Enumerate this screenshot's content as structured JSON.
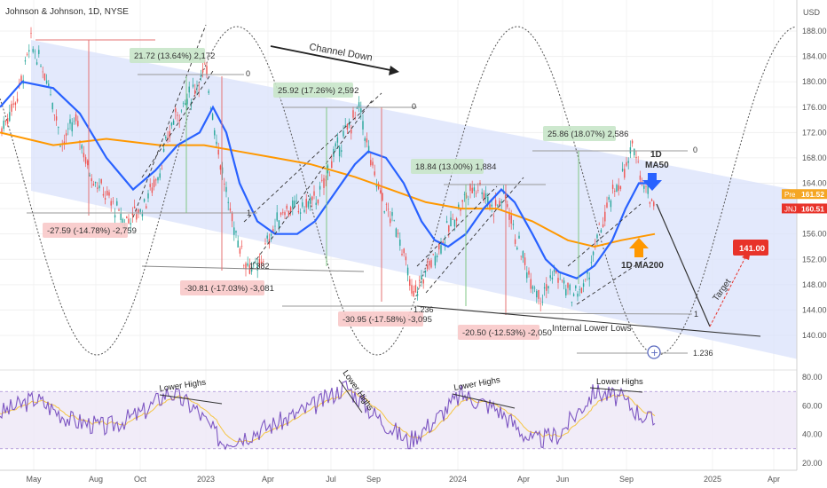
{
  "header": {
    "title": "Johnson & Johnson, 1D, NYSE",
    "currency": "USD"
  },
  "chart_data": {
    "type": "line",
    "title": "Johnson & Johnson, 1D, NYSE",
    "symbol": "JNJ",
    "x_ticks": [
      "May",
      "Aug",
      "Oct",
      "2023",
      "Apr",
      "Jul",
      "Sep",
      "2024",
      "Apr",
      "Jun",
      "Sep",
      "2025",
      "Apr"
    ],
    "y_ticks": [
      "188.00",
      "184.00",
      "180.00",
      "176.00",
      "172.00",
      "168.00",
      "164.00",
      "160.00",
      "156.00",
      "152.00",
      "148.00",
      "144.00",
      "140.00"
    ],
    "ylim": [
      137,
      190
    ],
    "price_labels": [
      {
        "label": "Pre",
        "value": "161.52",
        "color": "#f5a623"
      },
      {
        "label": "JNJ",
        "value": "160.51",
        "color": "#e8332a"
      }
    ],
    "series": [
      {
        "name": "Price",
        "color": "#26a69a"
      },
      {
        "name": "MA50",
        "color": "#2962ff"
      },
      {
        "name": "MA200",
        "color": "#ff9800"
      }
    ],
    "rsi": {
      "y_ticks": [
        "80.00",
        "60.00",
        "40.00",
        "20.00"
      ],
      "ylim": [
        18,
        86
      ],
      "band": [
        30,
        70
      ]
    },
    "annotations": {
      "channel_label": "Channel Down",
      "green_boxes": [
        "21.72 (13.64%) 2,172",
        "25.92 (17.26%) 2,592",
        "18.84 (13.00%) 1,884",
        "25.86 (18.07%) 2,586"
      ],
      "red_boxes": [
        "-27.59 (-14.78%) -2,759",
        "-30.81 (-17.03%) -3,081",
        "-30.95 (-17.58%) -3,095",
        "-20.50 (-12.53%) -2,050"
      ],
      "fib": [
        "0",
        "1",
        "1.382",
        "0",
        "1.236",
        "0",
        "1",
        "1.236"
      ],
      "ma50_label": [
        "1D",
        "MA50"
      ],
      "ma200_label": "1D MA200",
      "internal_lows": "Internal Lower Lows",
      "target_text": "Target",
      "target_value": "141.00",
      "lower_highs": [
        "Lower Highs",
        "Lower Highs",
        "Lower Highs",
        "Lower Highs"
      ]
    }
  }
}
